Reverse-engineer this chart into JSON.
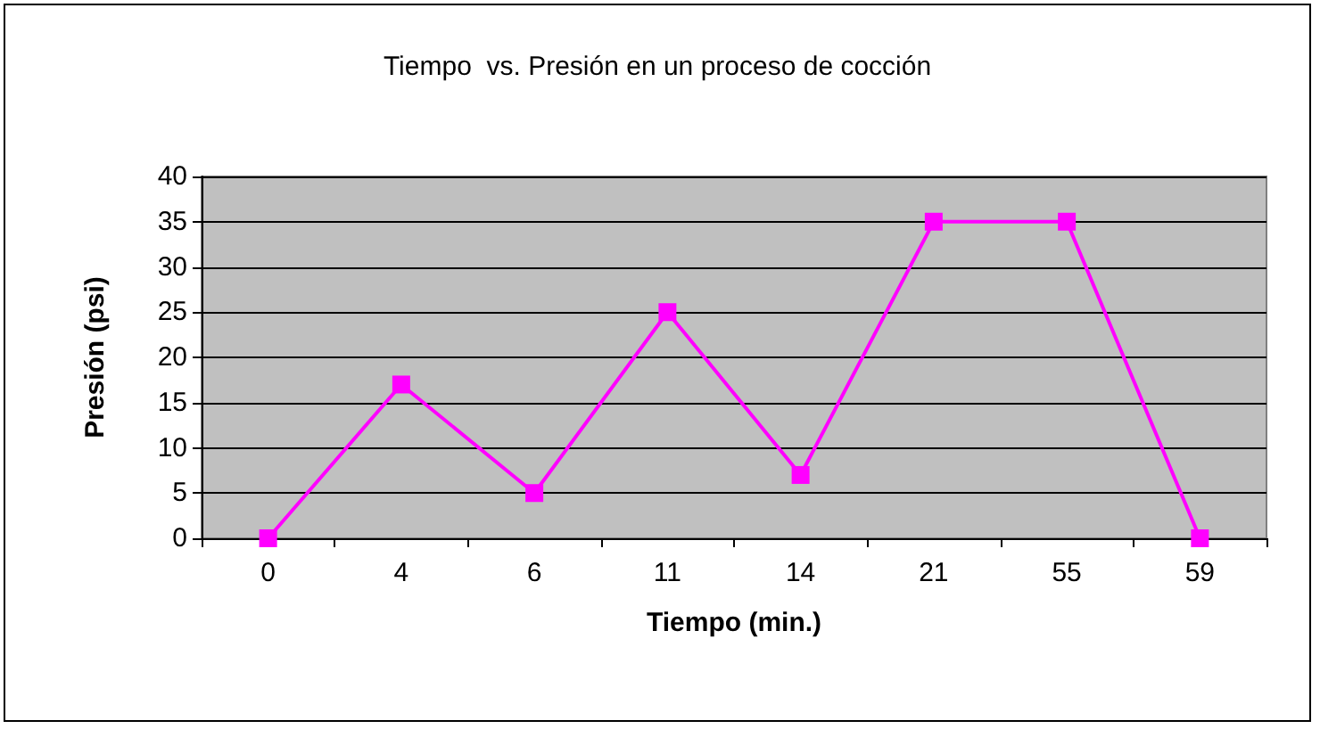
{
  "chart_data": {
    "type": "line",
    "title": "Tiempo  vs. Presión en un proceso de cocción",
    "xlabel": "Tiempo (min.)",
    "ylabel": "Presión (psi)",
    "categories": [
      "0",
      "4",
      "6",
      "11",
      "14",
      "21",
      "55",
      "59"
    ],
    "series": [
      {
        "color": "#ff00ff",
        "values": [
          0,
          17,
          5,
          25,
          7,
          35,
          35,
          0
        ]
      }
    ],
    "ylim": [
      0,
      40
    ],
    "yticks": [
      0,
      5,
      10,
      15,
      20,
      25,
      30,
      35,
      40
    ],
    "grid": "y",
    "marker": "square",
    "line_style": "solid"
  }
}
